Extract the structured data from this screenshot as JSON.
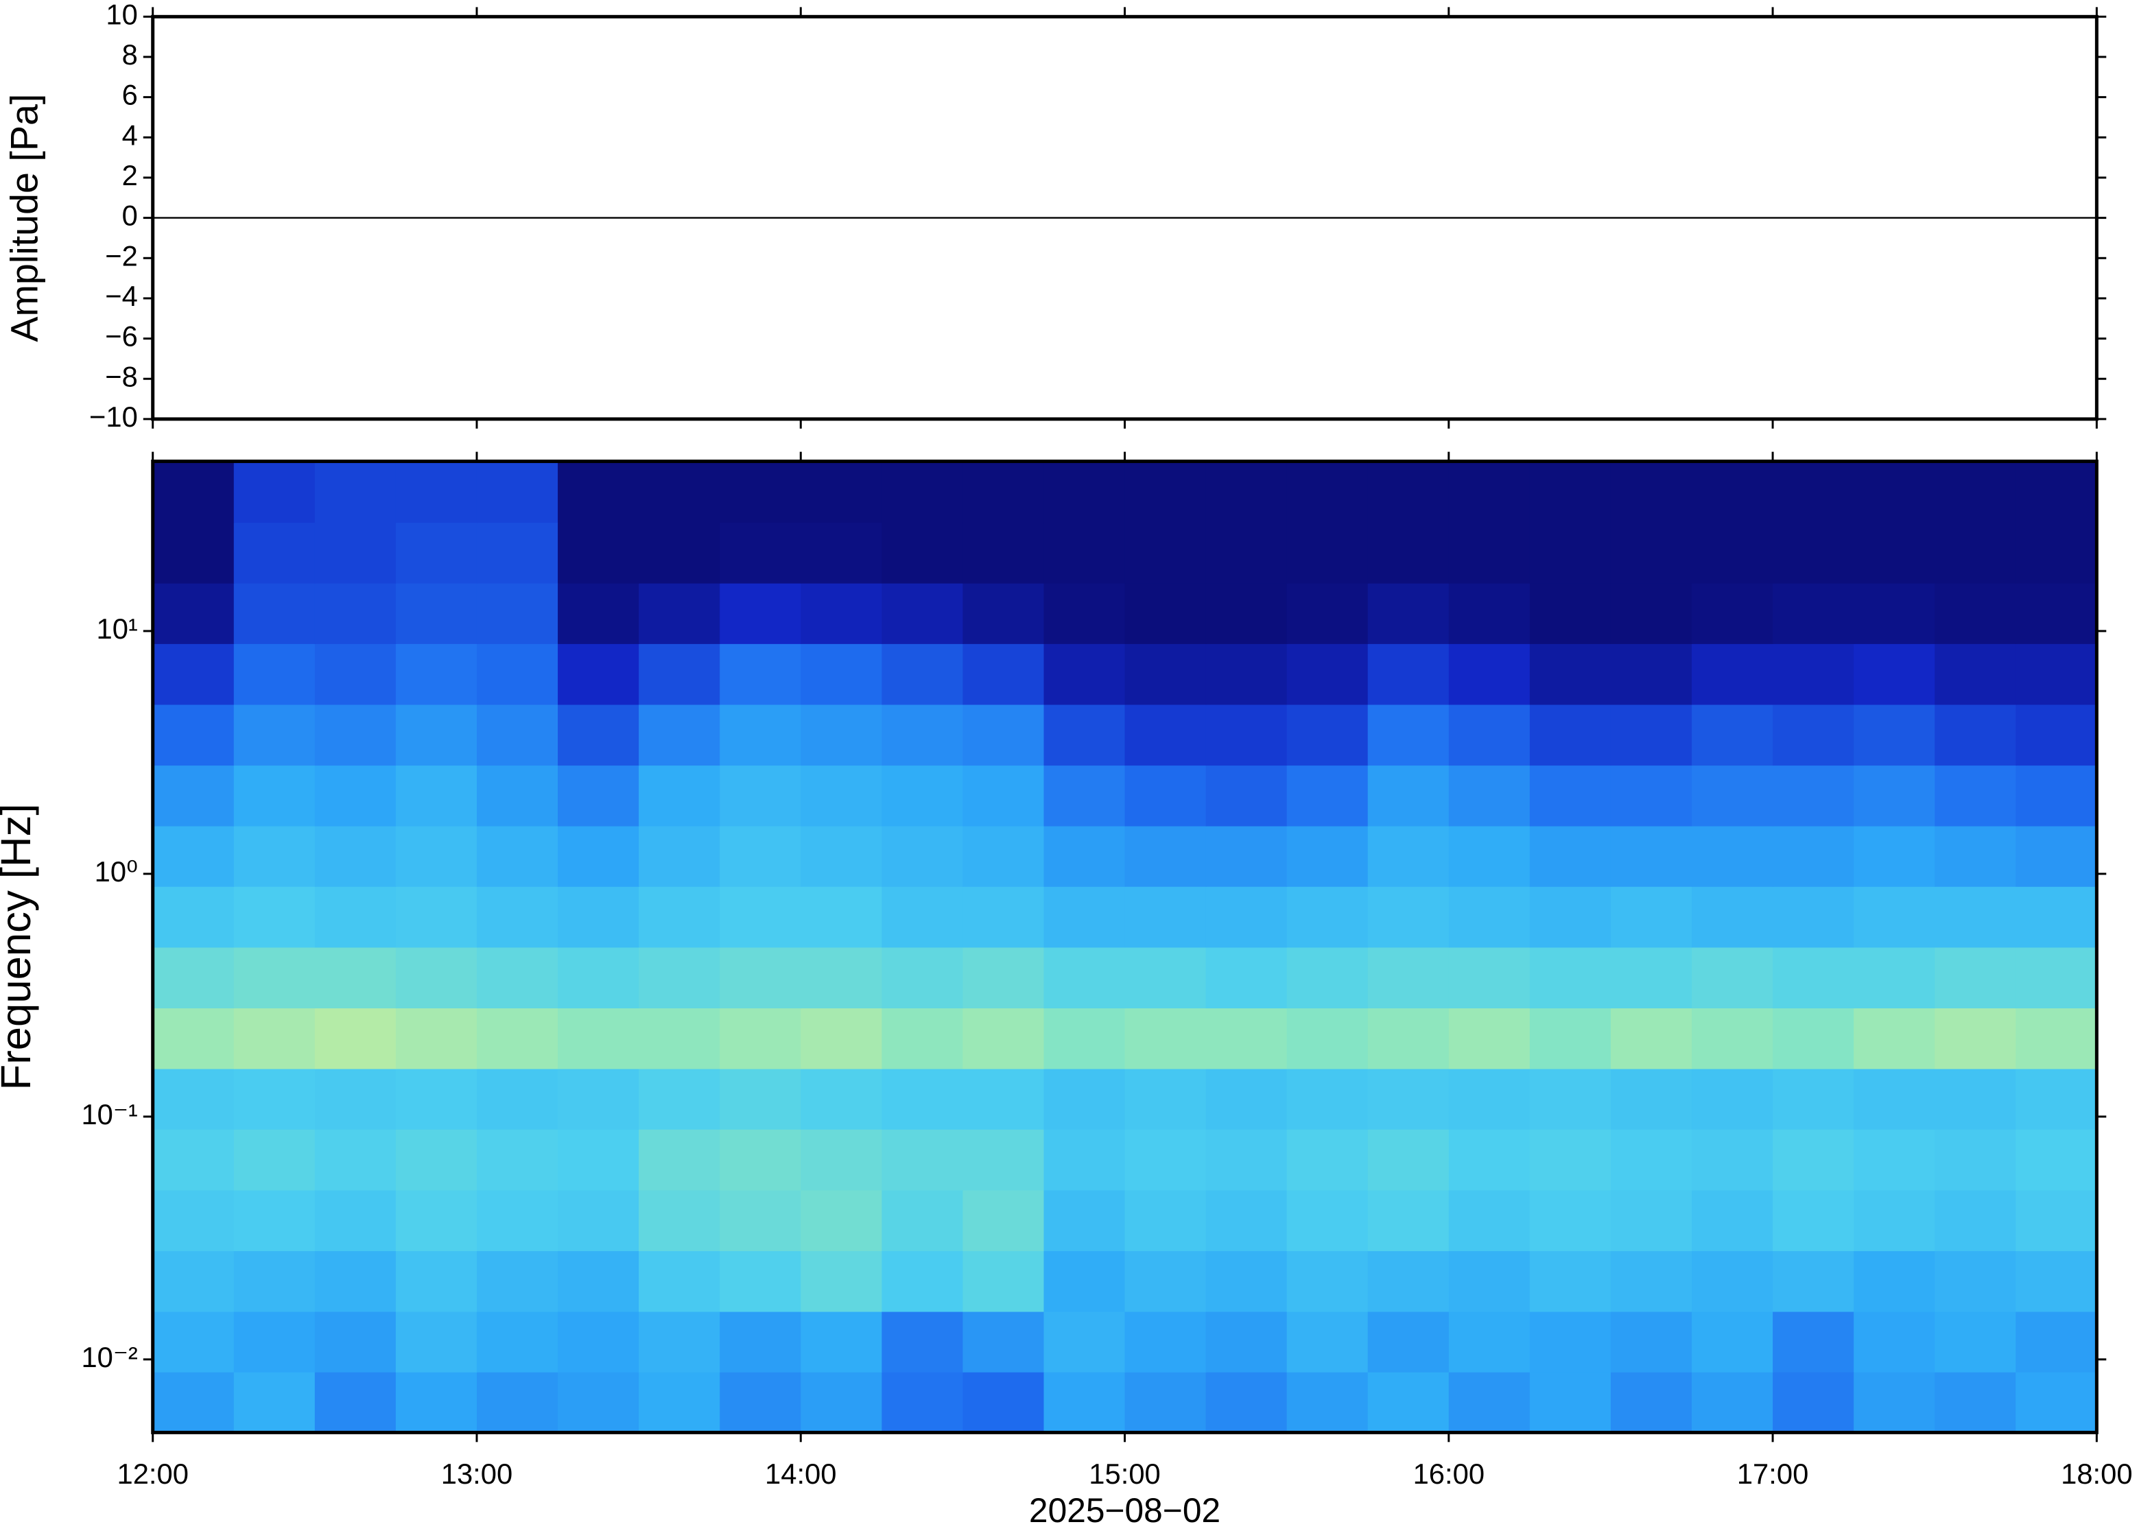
{
  "chart_data": [
    {
      "type": "line",
      "ylabel": "Amplitude [Pa]",
      "xlim": [
        12,
        18
      ],
      "xticks": [
        12,
        13,
        14,
        15,
        16,
        17,
        18
      ],
      "ylim": [
        -10,
        10
      ],
      "yticks": [
        {
          "value": -10,
          "label": "−10"
        },
        {
          "value": -8,
          "label": "−8"
        },
        {
          "value": -6,
          "label": "−6"
        },
        {
          "value": -4,
          "label": "−4"
        },
        {
          "value": -2,
          "label": "−2"
        },
        0,
        2,
        4,
        6,
        8,
        10
      ],
      "x": [
        12,
        18
      ],
      "series": [
        {
          "color": "#000000",
          "values": [
            0,
            0
          ]
        }
      ]
    },
    {
      "type": "heatmap",
      "xlabel": "2025−08−02",
      "ylabel": "Frequency [Hz]",
      "xlim": [
        12,
        18
      ],
      "xticks": [
        {
          "value": 12,
          "label": "12:00"
        },
        {
          "value": 13,
          "label": "13:00"
        },
        {
          "value": 14,
          "label": "14:00"
        },
        {
          "value": 15,
          "label": "15:00"
        },
        {
          "value": 16,
          "label": "16:00"
        },
        {
          "value": 17,
          "label": "17:00"
        },
        {
          "value": 18,
          "label": "18:00"
        }
      ],
      "ylim": [
        0.005,
        50
      ],
      "log_y": true,
      "yticks": [
        {
          "value": 0.01,
          "label": "10⁻²"
        },
        {
          "value": 0.1,
          "label": "10⁻¹"
        },
        {
          "value": 1,
          "label": "10⁰"
        },
        {
          "value": 10,
          "label": "10¹"
        }
      ],
      "colormap": [
        "#0a0a70",
        "#1228c8",
        "#1f6ef0",
        "#2eaaf8",
        "#4ccff0",
        "#8ae6c0",
        "#e6f08a",
        "#f5b860"
      ],
      "x_bins": [
        12,
        12.25,
        12.5,
        12.75,
        13,
        13.25,
        13.5,
        13.75,
        14,
        14.25,
        14.5,
        14.75,
        15,
        15.25,
        15.5,
        15.75,
        16,
        16.25,
        16.5,
        16.75,
        17,
        17.25,
        17.5,
        17.75,
        18
      ],
      "y_bins": [
        0.005,
        0.0089,
        0.0158,
        0.0281,
        0.05,
        0.089,
        0.158,
        0.281,
        0.5,
        0.89,
        1.58,
        2.81,
        5,
        8.9,
        15.8,
        28.1,
        50
      ],
      "z": [
        [
          0.4,
          0.45,
          0.35,
          0.42,
          0.38,
          0.4,
          0.44,
          0.36,
          0.4,
          0.3,
          0.28,
          0.42,
          0.38,
          0.35,
          0.4,
          0.44,
          0.38,
          0.42,
          0.36,
          0.4,
          0.32,
          0.4,
          0.38,
          0.42
        ],
        [
          0.45,
          0.42,
          0.4,
          0.48,
          0.44,
          0.42,
          0.46,
          0.4,
          0.44,
          0.32,
          0.38,
          0.46,
          0.42,
          0.4,
          0.46,
          0.4,
          0.44,
          0.42,
          0.4,
          0.44,
          0.34,
          0.42,
          0.44,
          0.4
        ],
        [
          0.5,
          0.48,
          0.46,
          0.52,
          0.48,
          0.46,
          0.55,
          0.58,
          0.62,
          0.56,
          0.6,
          0.44,
          0.48,
          0.46,
          0.5,
          0.48,
          0.46,
          0.5,
          0.48,
          0.46,
          0.48,
          0.44,
          0.46,
          0.48
        ],
        [
          0.55,
          0.56,
          0.54,
          0.58,
          0.56,
          0.55,
          0.62,
          0.64,
          0.66,
          0.6,
          0.64,
          0.5,
          0.54,
          0.52,
          0.56,
          0.58,
          0.54,
          0.56,
          0.55,
          0.52,
          0.56,
          0.54,
          0.52,
          0.55
        ],
        [
          0.58,
          0.6,
          0.58,
          0.6,
          0.58,
          0.57,
          0.64,
          0.66,
          0.64,
          0.62,
          0.62,
          0.54,
          0.56,
          0.55,
          0.58,
          0.6,
          0.57,
          0.58,
          0.56,
          0.55,
          0.58,
          0.56,
          0.55,
          0.57
        ],
        [
          0.55,
          0.56,
          0.55,
          0.56,
          0.54,
          0.55,
          0.58,
          0.6,
          0.58,
          0.56,
          0.56,
          0.52,
          0.54,
          0.52,
          0.54,
          0.55,
          0.54,
          0.55,
          0.53,
          0.52,
          0.54,
          0.52,
          0.52,
          0.54
        ],
        [
          0.74,
          0.76,
          0.78,
          0.76,
          0.74,
          0.72,
          0.72,
          0.74,
          0.76,
          0.72,
          0.74,
          0.7,
          0.72,
          0.72,
          0.7,
          0.72,
          0.74,
          0.7,
          0.74,
          0.72,
          0.7,
          0.74,
          0.76,
          0.74
        ],
        [
          0.64,
          0.66,
          0.66,
          0.64,
          0.62,
          0.6,
          0.62,
          0.64,
          0.64,
          0.62,
          0.64,
          0.6,
          0.6,
          0.58,
          0.6,
          0.62,
          0.62,
          0.6,
          0.6,
          0.62,
          0.6,
          0.6,
          0.62,
          0.62
        ],
        [
          0.54,
          0.56,
          0.54,
          0.55,
          0.52,
          0.5,
          0.54,
          0.56,
          0.56,
          0.52,
          0.52,
          0.48,
          0.48,
          0.48,
          0.5,
          0.52,
          0.5,
          0.48,
          0.5,
          0.48,
          0.48,
          0.5,
          0.5,
          0.5
        ],
        [
          0.46,
          0.5,
          0.48,
          0.5,
          0.46,
          0.42,
          0.48,
          0.52,
          0.5,
          0.48,
          0.46,
          0.4,
          0.38,
          0.38,
          0.4,
          0.46,
          0.44,
          0.4,
          0.4,
          0.4,
          0.4,
          0.42,
          0.4,
          0.38
        ],
        [
          0.38,
          0.44,
          0.42,
          0.46,
          0.4,
          0.34,
          0.44,
          0.48,
          0.46,
          0.44,
          0.42,
          0.32,
          0.28,
          0.26,
          0.3,
          0.4,
          0.36,
          0.3,
          0.3,
          0.32,
          0.32,
          0.34,
          0.3,
          0.28
        ],
        [
          0.28,
          0.36,
          0.34,
          0.38,
          0.34,
          0.24,
          0.34,
          0.4,
          0.38,
          0.36,
          0.34,
          0.22,
          0.18,
          0.18,
          0.2,
          0.3,
          0.26,
          0.2,
          0.2,
          0.24,
          0.22,
          0.24,
          0.2,
          0.18
        ],
        [
          0.18,
          0.28,
          0.26,
          0.3,
          0.28,
          0.14,
          0.22,
          0.3,
          0.28,
          0.24,
          0.2,
          0.1,
          0.08,
          0.08,
          0.1,
          0.18,
          0.14,
          0.08,
          0.08,
          0.12,
          0.12,
          0.14,
          0.1,
          0.1
        ],
        [
          0.06,
          0.22,
          0.22,
          0.24,
          0.24,
          0.04,
          0.08,
          0.14,
          0.12,
          0.1,
          0.06,
          0.03,
          0.02,
          0.02,
          0.03,
          0.06,
          0.04,
          0.02,
          0.02,
          0.03,
          0.04,
          0.04,
          0.03,
          0.03
        ],
        [
          0.02,
          0.2,
          0.2,
          0.22,
          0.22,
          0.02,
          0.02,
          0.03,
          0.03,
          0.02,
          0.02,
          0.02,
          0.02,
          0.02,
          0.02,
          0.02,
          0.02,
          0.02,
          0.02,
          0.02,
          0.02,
          0.02,
          0.02,
          0.02
        ],
        [
          0.02,
          0.18,
          0.2,
          0.2,
          0.2,
          0.02,
          0.02,
          0.02,
          0.02,
          0.02,
          0.02,
          0.02,
          0.02,
          0.02,
          0.02,
          0.02,
          0.02,
          0.02,
          0.02,
          0.02,
          0.02,
          0.02,
          0.02,
          0.02
        ]
      ]
    }
  ]
}
